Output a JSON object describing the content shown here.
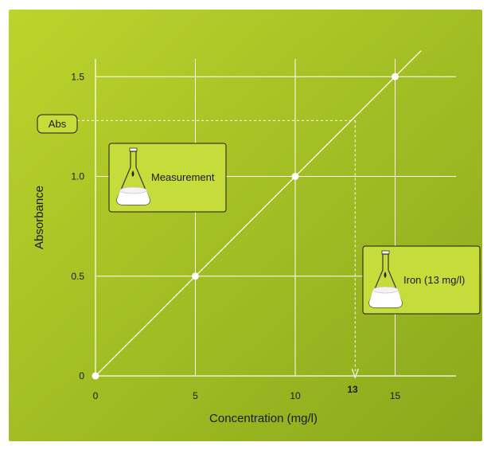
{
  "chart_data": {
    "type": "line",
    "xlabel": "Concentration (mg/l)",
    "ylabel": "Absorbance",
    "x_ticks": [
      "0",
      "5",
      "10",
      "15"
    ],
    "y_ticks": [
      "0",
      "0.5",
      "1.0",
      "1.5"
    ],
    "xlim": [
      0,
      18
    ],
    "ylim": [
      0,
      1.6
    ],
    "grid": true,
    "series": [
      {
        "x": [
          0,
          5,
          10,
          15
        ],
        "y": [
          0,
          0.5,
          1.0,
          1.5
        ]
      }
    ],
    "line_extends_to_x": 16.3,
    "reading": {
      "x": 13,
      "y": 1.28,
      "x_label": "13",
      "y_label": "Abs"
    },
    "annotations": [
      {
        "label": "Measurement",
        "icon": "flask-icon"
      },
      {
        "label": "Iron (13 mg/l)",
        "icon": "flask-icon"
      }
    ],
    "colors": {
      "background_start": "#b7cf2a",
      "background_end": "#8fad1c",
      "grid": "#ffffff",
      "line": "#ffffff",
      "box_fill": "#c6dc3a",
      "box_border": "#1a1a1a"
    }
  }
}
